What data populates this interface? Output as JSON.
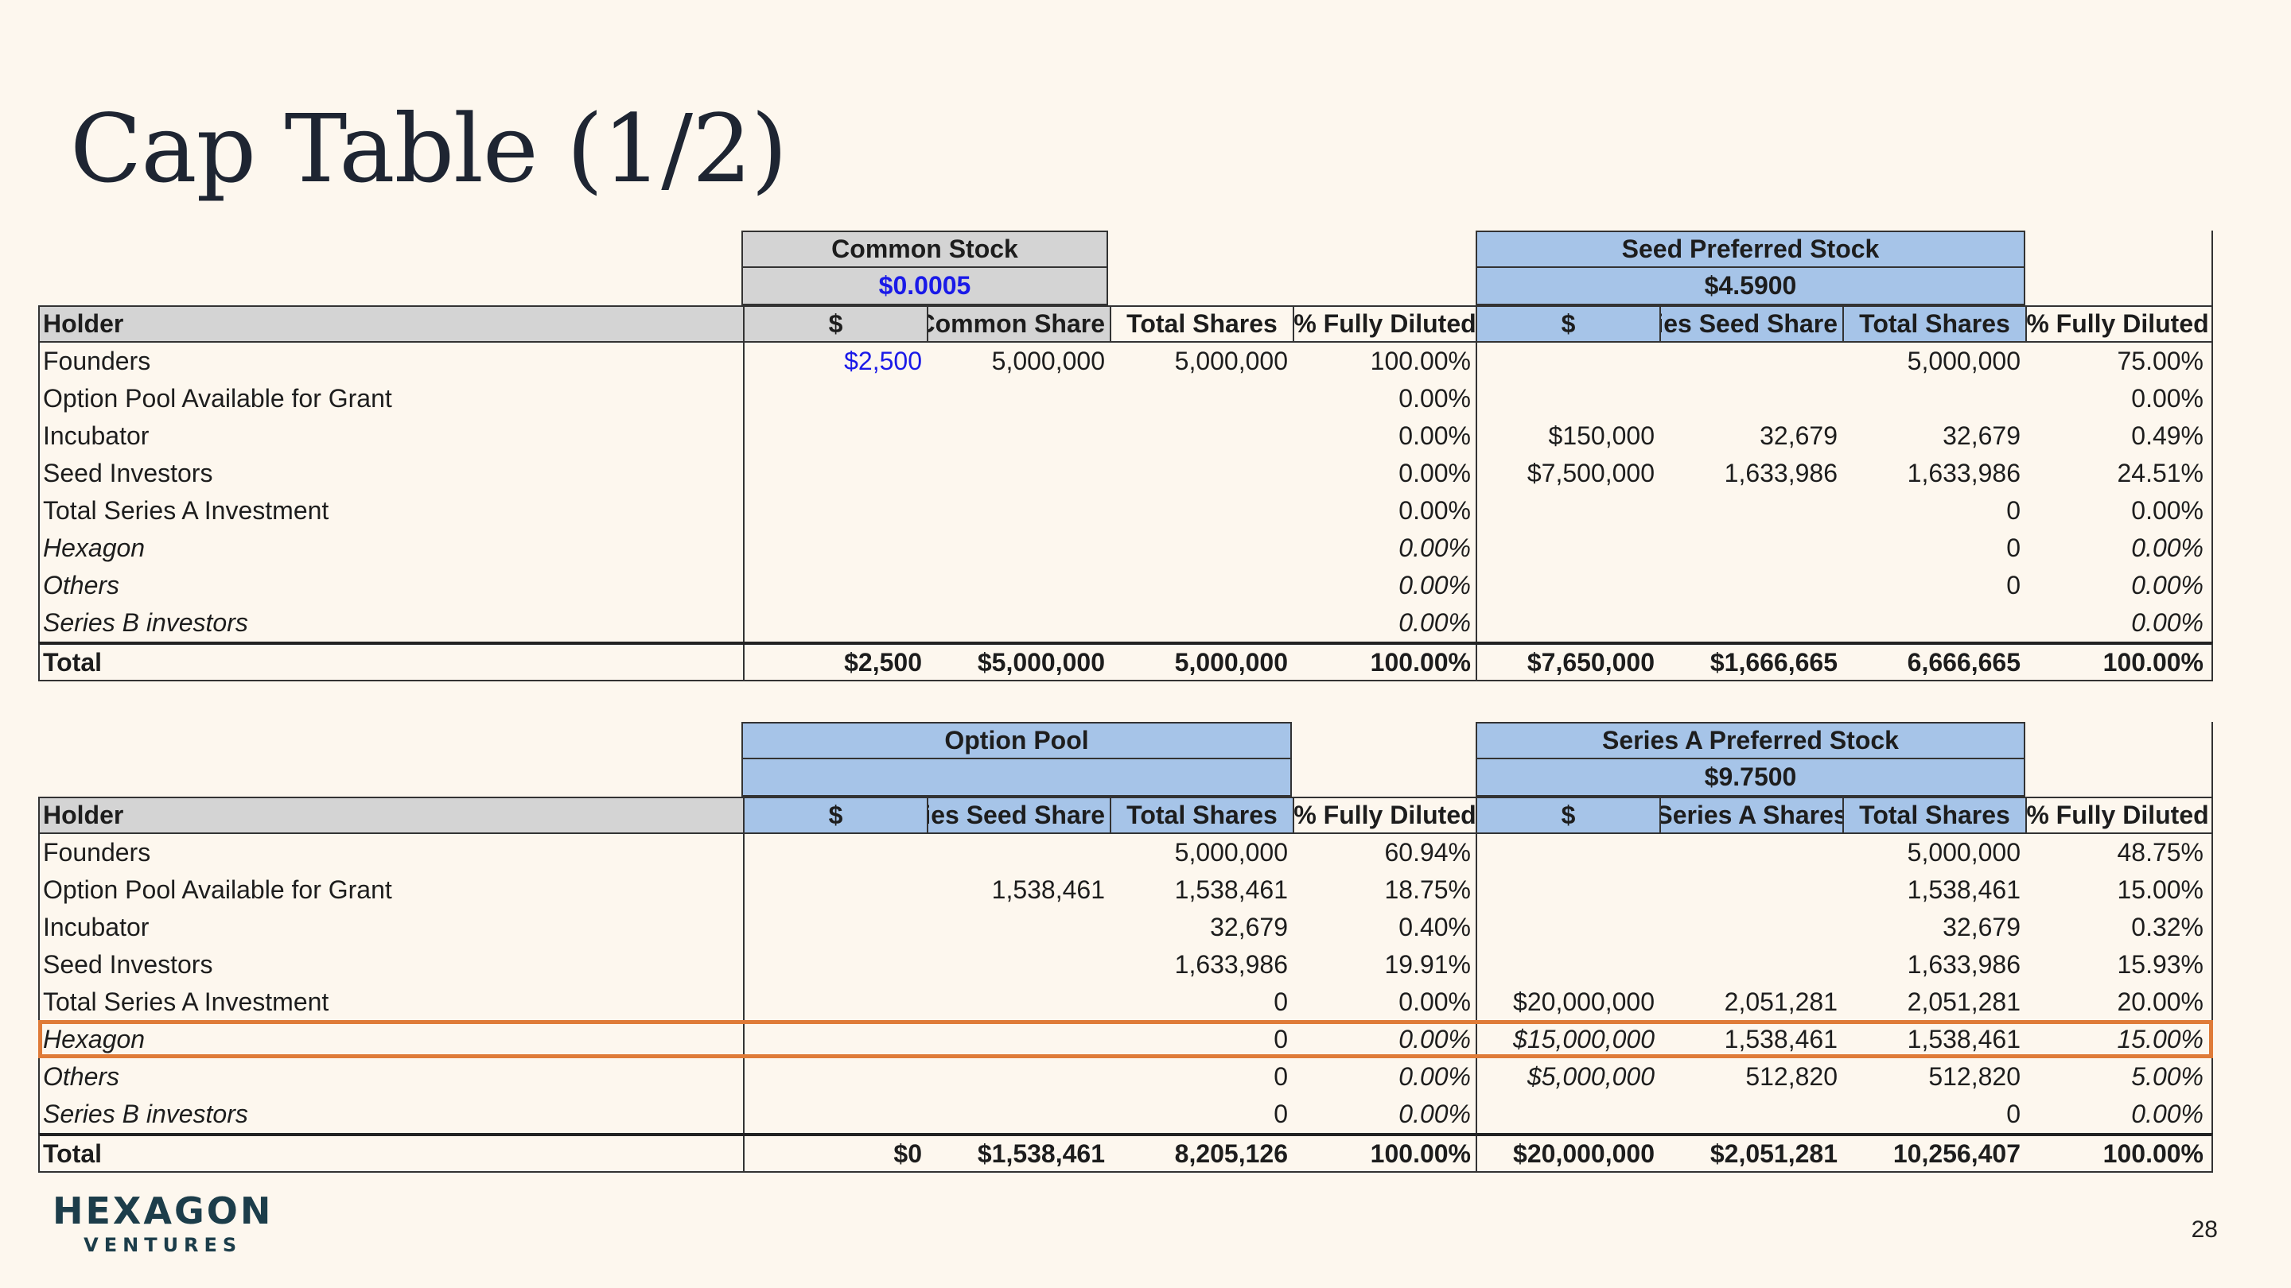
{
  "title": "Cap Table (1/2)",
  "page_number": "28",
  "logo": {
    "main": "HEXAGON",
    "sub": "VENTURES"
  },
  "table1": {
    "groups": [
      {
        "name": "Common Stock",
        "price": "$0.0005"
      },
      {
        "name": "Seed Preferred Stock",
        "price": "$4.5900"
      }
    ],
    "headers": [
      "Holder",
      "$",
      "Common Share",
      "Total Shares",
      "% Fully Diluted",
      "$",
      "Series Seed Share",
      "Total Shares",
      "% Fully Diluted"
    ],
    "rows": [
      {
        "holder": "Founders",
        "italic": false,
        "cells": [
          "$2,500",
          "5,000,000",
          "5,000,000",
          "100.00%",
          "",
          "",
          "5,000,000",
          "75.00%"
        ]
      },
      {
        "holder": "Option Pool Available for Grant",
        "italic": false,
        "cells": [
          "",
          "",
          "",
          "0.00%",
          "",
          "",
          "",
          "0.00%"
        ]
      },
      {
        "holder": "Incubator",
        "italic": false,
        "cells": [
          "",
          "",
          "",
          "0.00%",
          "$150,000",
          "32,679",
          "32,679",
          "0.49%"
        ]
      },
      {
        "holder": "Seed Investors",
        "italic": false,
        "cells": [
          "",
          "",
          "",
          "0.00%",
          "$7,500,000",
          "1,633,986",
          "1,633,986",
          "24.51%"
        ]
      },
      {
        "holder": "Total Series A Investment",
        "italic": false,
        "cells": [
          "",
          "",
          "",
          "0.00%",
          "",
          "",
          "0",
          "0.00%"
        ]
      },
      {
        "holder": "Hexagon",
        "italic": true,
        "cells": [
          "",
          "",
          "",
          "0.00%",
          "",
          "",
          "0",
          "0.00%"
        ]
      },
      {
        "holder": "Others",
        "italic": true,
        "cells": [
          "",
          "",
          "",
          "0.00%",
          "",
          "",
          "0",
          "0.00%"
        ]
      },
      {
        "holder": "Series B investors",
        "italic": true,
        "cells": [
          "",
          "",
          "",
          "0.00%",
          "",
          "",
          "",
          "0.00%"
        ]
      }
    ],
    "total": {
      "holder": "Total",
      "cells": [
        "$2,500",
        "$5,000,000",
        "5,000,000",
        "100.00%",
        "$7,650,000",
        "$1,666,665",
        "6,666,665",
        "100.00%"
      ]
    }
  },
  "table2": {
    "groups": [
      {
        "name": "Option Pool",
        "price": ""
      },
      {
        "name": "Series A Preferred Stock",
        "price": "$9.7500"
      }
    ],
    "headers": [
      "Holder",
      "$",
      "Series Seed Share",
      "Total Shares",
      "% Fully Diluted",
      "$",
      "Series A Shares",
      "Total Shares",
      "% Fully Diluted"
    ],
    "rows": [
      {
        "holder": "Founders",
        "italic": false,
        "cells": [
          "",
          "",
          "5,000,000",
          "60.94%",
          "",
          "",
          "5,000,000",
          "48.75%"
        ]
      },
      {
        "holder": "Option Pool Available for Grant",
        "italic": false,
        "cells": [
          "",
          "1,538,461",
          "1,538,461",
          "18.75%",
          "",
          "",
          "1,538,461",
          "15.00%"
        ]
      },
      {
        "holder": "Incubator",
        "italic": false,
        "cells": [
          "",
          "",
          "32,679",
          "0.40%",
          "",
          "",
          "32,679",
          "0.32%"
        ]
      },
      {
        "holder": "Seed Investors",
        "italic": false,
        "cells": [
          "",
          "",
          "1,633,986",
          "19.91%",
          "",
          "",
          "1,633,986",
          "15.93%"
        ]
      },
      {
        "holder": "Total Series A Investment",
        "italic": false,
        "cells": [
          "",
          "",
          "0",
          "0.00%",
          "$20,000,000",
          "2,051,281",
          "2,051,281",
          "20.00%"
        ]
      },
      {
        "holder": "Hexagon",
        "italic": true,
        "cells": [
          "",
          "",
          "0",
          "0.00%",
          "$15,000,000",
          "1,538,461",
          "1,538,461",
          "15.00%"
        ]
      },
      {
        "holder": "Others",
        "italic": true,
        "cells": [
          "",
          "",
          "0",
          "0.00%",
          "$5,000,000",
          "512,820",
          "512,820",
          "5.00%"
        ]
      },
      {
        "holder": "Series B investors",
        "italic": true,
        "cells": [
          "",
          "",
          "0",
          "0.00%",
          "",
          "",
          "0",
          "0.00%"
        ]
      }
    ],
    "total": {
      "holder": "Total",
      "cells": [
        "$0",
        "$1,538,461",
        "8,205,126",
        "100.00%",
        "$20,000,000",
        "$2,051,281",
        "10,256,407",
        "100.00%"
      ]
    }
  }
}
